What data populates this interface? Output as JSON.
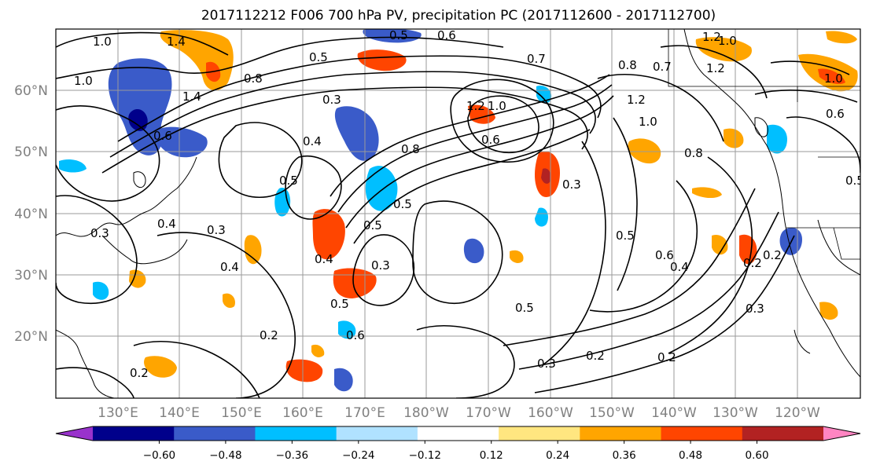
{
  "title": "2017112212 F006 700 hPa PV, precipitation PC (2017112600 - 2017112700)",
  "lat_labels": [
    "60°N",
    "50°N",
    "40°N",
    "30°N",
    "20°N"
  ],
  "lon_labels": [
    "130°E",
    "140°E",
    "150°E",
    "160°E",
    "170°E",
    "180°W",
    "170°W",
    "160°W",
    "150°W",
    "140°W",
    "130°W",
    "120°W"
  ],
  "colorbar": {
    "colors": [
      "#9932cc",
      "#00008b",
      "#3a5bc9",
      "#00bfff",
      "#b0e2ff",
      "#ffffff",
      "#ffe680",
      "#ffa500",
      "#ff4500",
      "#b22222",
      "#ff85c2"
    ],
    "tick_labels": [
      "-0.60",
      "-0.48",
      "-0.36",
      "-0.24",
      "-0.12",
      "0.12",
      "0.24",
      "0.36",
      "0.48",
      "0.60"
    ]
  },
  "contour_labels": [
    "1.0",
    "1.4",
    "0.5",
    "0.6",
    "1.2",
    "1.0",
    "0.5",
    "0.7",
    "0.8",
    "1.0",
    "1.4",
    "0.8",
    "0.3",
    "0.6",
    "0.4",
    "0.5",
    "0.4",
    "0.3",
    "0.5",
    "0.3",
    "0.4",
    "0.3",
    "0.5",
    "0.6",
    "0.2",
    "0.2",
    "0.3",
    "0.2",
    "0.5",
    "0.6",
    "0.4",
    "0.2",
    "0.3",
    "0.5",
    "0.2",
    "0.2",
    "1.2",
    "1.0",
    "0.6",
    "1.2",
    "1.0",
    "0.3",
    "0.8",
    "0.5",
    "0.4",
    "0.8",
    "0.7",
    "1.2",
    "1.0",
    "0.5",
    "0.6"
  ]
}
